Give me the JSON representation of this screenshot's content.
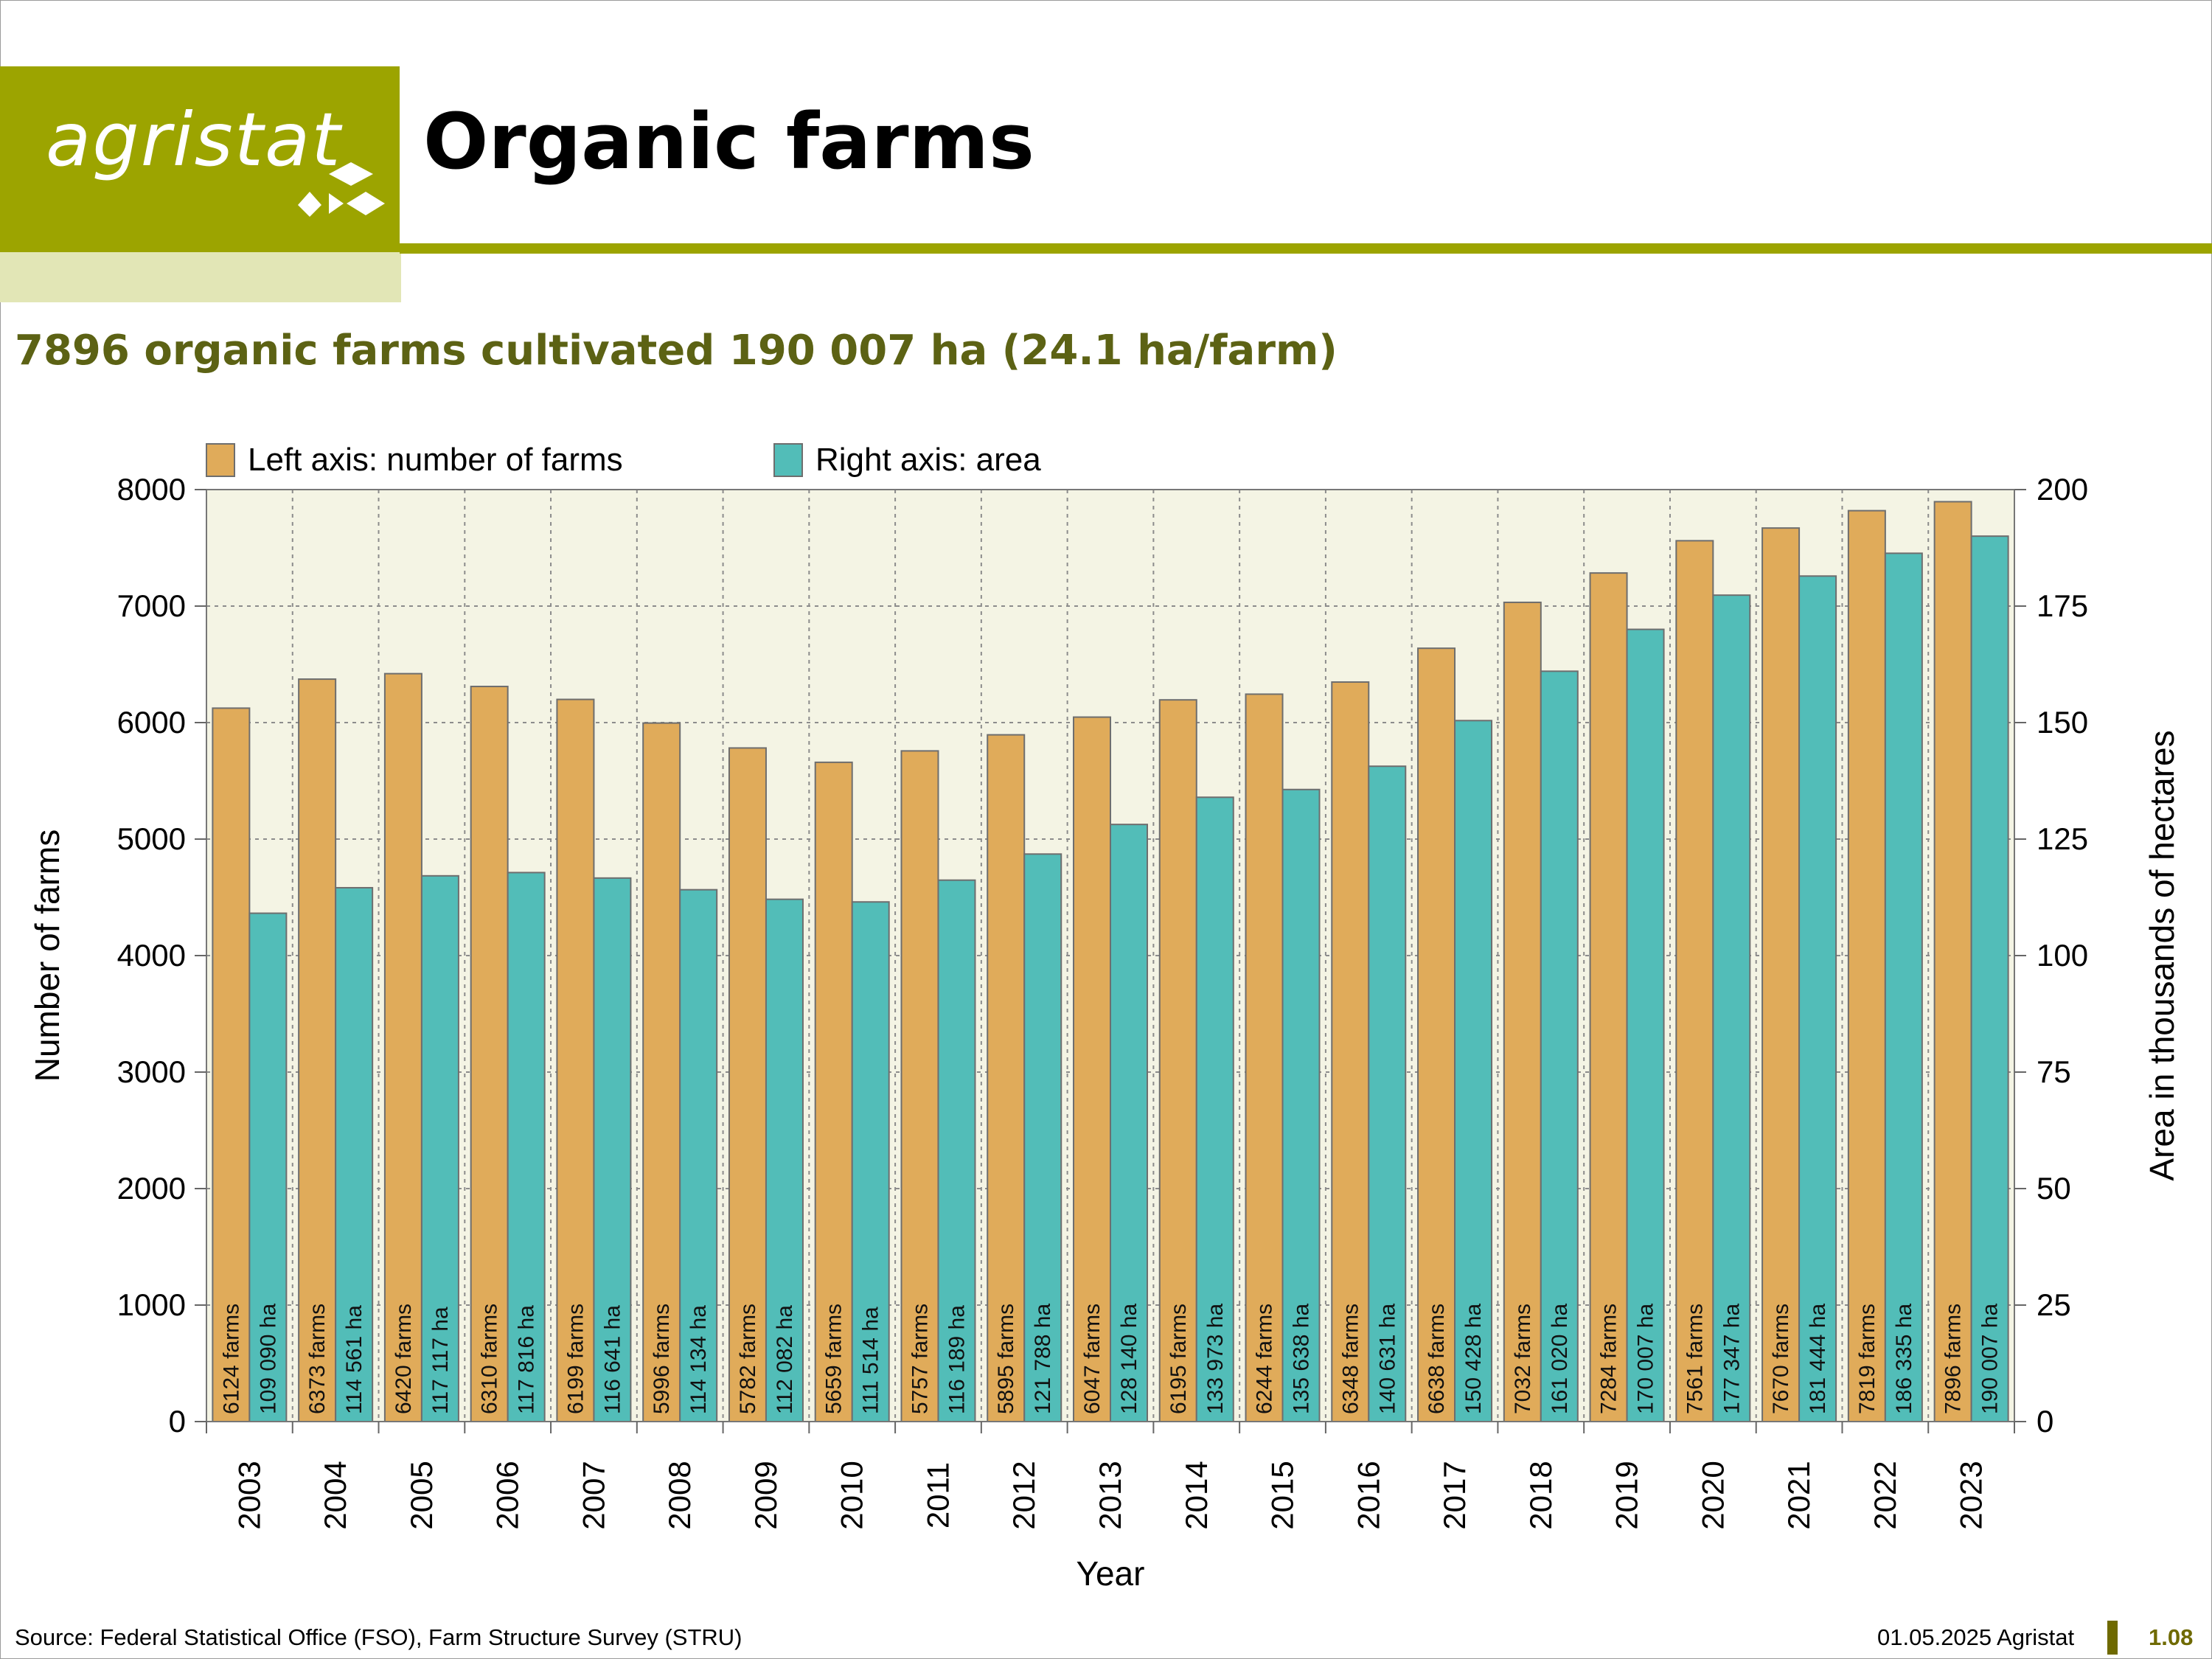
{
  "header": {
    "logo_text": "agristat",
    "title": "Organic farms"
  },
  "colors": {
    "brand": "#9ca400",
    "brand_light": "#e2e6b6",
    "subtitle": "#5c6214",
    "plot_background": "#f4f4e4",
    "farms": "#e0ab5a",
    "area": "#52bdb8"
  },
  "chart_data": {
    "type": "bar",
    "title": "7896 organic farms cultivated 190 007 ha (24.1 ha/farm)",
    "xlabel": "Year",
    "ylabel": "Number of farms",
    "y2label": "Area in thousands of hectares",
    "ylim": [
      0,
      8000
    ],
    "y2lim": [
      0,
      200
    ],
    "yticks": [
      0,
      1000,
      2000,
      3000,
      4000,
      5000,
      6000,
      7000,
      8000
    ],
    "y2ticks": [
      0,
      25,
      50,
      75,
      100,
      125,
      150,
      175,
      200
    ],
    "grid": true,
    "legend_placement": "top-left",
    "categories": [
      "2003",
      "2004",
      "2005",
      "2006",
      "2007",
      "2008",
      "2009",
      "2010",
      "2011",
      "2012",
      "2013",
      "2014",
      "2015",
      "2016",
      "2017",
      "2018",
      "2019",
      "2020",
      "2021",
      "2022",
      "2023"
    ],
    "series": [
      {
        "name": "Left axis: number of farms",
        "axis": "left",
        "color": "#e0ab5a",
        "values": [
          6124,
          6373,
          6420,
          6310,
          6199,
          5996,
          5782,
          5659,
          5757,
          5895,
          6047,
          6195,
          6244,
          6348,
          6638,
          7032,
          7284,
          7561,
          7670,
          7819,
          7896
        ],
        "labels": [
          "6124 farms",
          "6373 farms",
          "6420 farms",
          "6310 farms",
          "6199 farms",
          "5996 farms",
          "5782 farms",
          "5659 farms",
          "5757 farms",
          "5895 farms",
          "6047 farms",
          "6195 farms",
          "6244 farms",
          "6348 farms",
          "6638 farms",
          "7032 farms",
          "7284 farms",
          "7561 farms",
          "7670 farms",
          "7819 farms",
          "7896 farms"
        ]
      },
      {
        "name": "Right axis: area",
        "axis": "right",
        "color": "#52bdb8",
        "values": [
          109.09,
          114.561,
          117.117,
          117.816,
          116.641,
          114.134,
          112.082,
          111.514,
          116.189,
          121.788,
          128.14,
          133.973,
          135.638,
          140.631,
          150.428,
          161.02,
          170.007,
          177.347,
          181.444,
          186.335,
          190.007
        ],
        "labels": [
          "109 090 ha",
          "114 561 ha",
          "117 117 ha",
          "117 816 ha",
          "116 641 ha",
          "114 134 ha",
          "112 082 ha",
          "111 514 ha",
          "116 189 ha",
          "121 788 ha",
          "128 140 ha",
          "133 973 ha",
          "135 638 ha",
          "140 631 ha",
          "150 428 ha",
          "161 020 ha",
          "170 007 ha",
          "177 347 ha",
          "181 444 ha",
          "186 335 ha",
          "190 007 ha"
        ]
      }
    ]
  },
  "footer": {
    "source": "Source: Federal Statistical Office (FSO), Farm Structure Survey (STRU)",
    "date": "01.05.2025 Agristat",
    "page_number": "1.08"
  }
}
